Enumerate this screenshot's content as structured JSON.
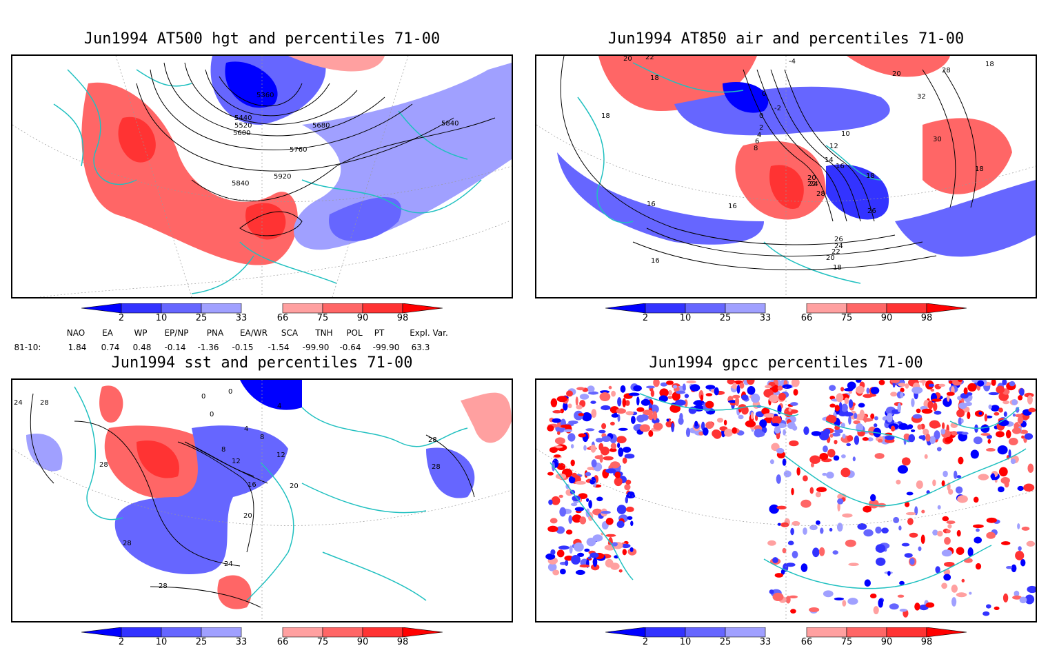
{
  "panels": [
    {
      "title": "Jun1994 AT500 hgt and percentiles 71-00",
      "contour_labels": [
        "5360",
        "5440",
        "5520",
        "5600",
        "5680",
        "5760",
        "5840",
        "5840",
        "5920"
      ]
    },
    {
      "title": "Jun1994 AT850 air and percentiles 71-00",
      "contour_labels": [
        "20",
        "22",
        "18",
        "-4",
        "0",
        "-2",
        "0",
        "2",
        "4",
        "6",
        "8",
        "10",
        "12",
        "14",
        "16",
        "18",
        "20",
        "22",
        "24",
        "28",
        "26",
        "16",
        "18",
        "16",
        "18",
        "30",
        "32",
        "28",
        "20",
        "18",
        "26",
        "24",
        "22",
        "20",
        "18",
        "16"
      ]
    },
    {
      "title": "Jun1994 sst and percentiles 71-00",
      "contour_labels": [
        "24",
        "28",
        "28",
        "28",
        "0",
        "0",
        "0",
        "4",
        "4",
        "8",
        "8",
        "12",
        "12",
        "16",
        "20",
        "20",
        "24",
        "28",
        "28",
        "28"
      ]
    },
    {
      "title": "Jun1994 gpcc percentiles 71-00",
      "contour_labels": []
    }
  ],
  "colorbar": {
    "labels": [
      "2",
      "10",
      "25",
      "33",
      "66",
      "75",
      "90",
      "98"
    ],
    "colors": [
      "#0000ff",
      "#3333ff",
      "#6666ff",
      "#a0a0ff",
      "#ffa0a0",
      "#ff6666",
      "#ff3333",
      "#ff0000"
    ]
  },
  "teleconnections": {
    "headers": [
      "NAO",
      "EA",
      "WP",
      "EP/NP",
      "PNA",
      "EA/WR",
      "SCA",
      "TNH",
      "POL",
      "PT",
      "Expl. Var."
    ],
    "row_label": "81-10:",
    "values": [
      "1.84",
      "0.74",
      "0.48",
      "-0.14",
      "-1.36",
      "-0.15",
      "-1.54",
      "-99.90",
      "-0.64",
      "-99.90",
      "63.3"
    ]
  },
  "colors": {
    "coastline": "#20c0c0",
    "frame": "#000000"
  }
}
